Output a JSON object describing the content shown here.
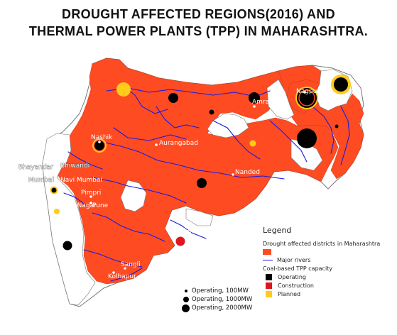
{
  "title": {
    "line1": "DROUGHT AFFECTED REGIONS(2016) AND",
    "line2": "THERMAL POWER PLANTS (TPP) IN MAHARASHTRA."
  },
  "colors": {
    "drought": "#ff4b22",
    "non_drought": "#ffffff",
    "outline": "#666666",
    "river": "#1a1adf",
    "operating": "#000000",
    "construction": "#e0151d",
    "planned": "#ffcc1a"
  },
  "cities": [
    {
      "name": "Nagpur"
    },
    {
      "name": "Amravati"
    },
    {
      "name": "Nashik"
    },
    {
      "name": "Aurangabad"
    },
    {
      "name": "Nanded"
    },
    {
      "name": "Bhayandar"
    },
    {
      "name": "Bhiwandi"
    },
    {
      "name": "Mumbai"
    },
    {
      "name": "Navi Mumbai"
    },
    {
      "name": "Pimpri"
    },
    {
      "name": "Shivaji Nagar"
    },
    {
      "name": "Pune"
    },
    {
      "name": "Solapur"
    },
    {
      "name": "Sangli"
    },
    {
      "name": "Kolhapur"
    }
  ],
  "power_plants": [
    {
      "status": "operating",
      "capacity_mw": 100
    },
    {
      "status": "operating",
      "capacity_mw": 1000
    },
    {
      "status": "operating",
      "capacity_mw": 2000
    },
    {
      "status": "construction",
      "capacity_mw": 1000
    },
    {
      "status": "planned",
      "capacity_mw": 1000
    }
  ],
  "legend": {
    "title": "Legend",
    "drought_label": "Drought affected districts in Maharashtra",
    "rivers_label": "Major rivers",
    "tpp_title": "Coal-based TPP capacity",
    "operating": "Operating",
    "construction": "Construction",
    "planned": "Planned"
  },
  "size_legend": {
    "small": "Operating, 100MW",
    "medium": "Operating, 1000MW",
    "large": "Operating, 2000MW"
  }
}
